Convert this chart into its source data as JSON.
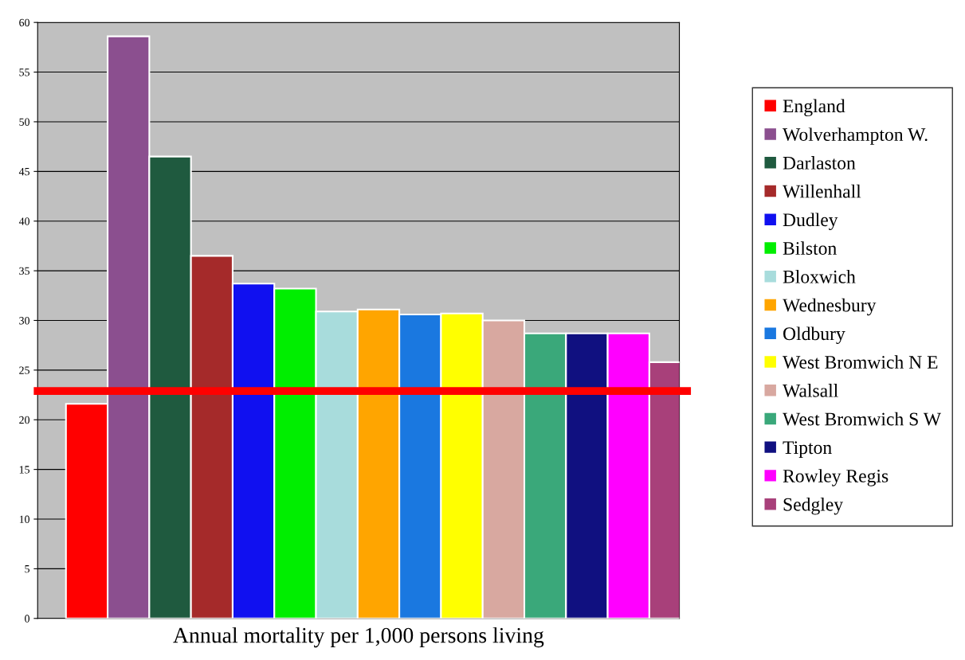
{
  "chart_data": {
    "type": "bar",
    "xlabel": "Annual mortality per 1,000 persons living",
    "categories": [
      null,
      null,
      null,
      null,
      null,
      null,
      null,
      null,
      null,
      null,
      null,
      null,
      null,
      null,
      null
    ],
    "series": [
      {
        "name": "England",
        "color": "#ff0000",
        "values": [
          21.6,
          null,
          null,
          null,
          null,
          null,
          null,
          null,
          null,
          null,
          null,
          null,
          null,
          null,
          null
        ]
      },
      {
        "name": "Wolverhampton W.",
        "color": "#8b4f8f",
        "values": [
          null,
          58.6,
          null,
          null,
          null,
          null,
          null,
          null,
          null,
          null,
          null,
          null,
          null,
          null,
          null
        ]
      },
      {
        "name": "Darlaston",
        "color": "#1f5a3f",
        "values": [
          null,
          null,
          46.5,
          null,
          null,
          null,
          null,
          null,
          null,
          null,
          null,
          null,
          null,
          null,
          null
        ]
      },
      {
        "name": "Willenhall",
        "color": "#a52a2a",
        "values": [
          null,
          null,
          null,
          36.5,
          null,
          null,
          null,
          null,
          null,
          null,
          null,
          null,
          null,
          null,
          null
        ]
      },
      {
        "name": "Dudley",
        "color": "#1010f0",
        "values": [
          null,
          null,
          null,
          null,
          33.7,
          null,
          null,
          null,
          null,
          null,
          null,
          null,
          null,
          null,
          null
        ]
      },
      {
        "name": "Bilston",
        "color": "#00ee00",
        "values": [
          null,
          null,
          null,
          null,
          null,
          33.2,
          null,
          null,
          null,
          null,
          null,
          null,
          null,
          null,
          null
        ]
      },
      {
        "name": "Bloxwich",
        "color": "#a8dcdc",
        "values": [
          null,
          null,
          null,
          null,
          null,
          null,
          30.9,
          null,
          null,
          null,
          null,
          null,
          null,
          null,
          null
        ]
      },
      {
        "name": "Wednesbury",
        "color": "#ffa500",
        "values": [
          null,
          null,
          null,
          null,
          null,
          null,
          null,
          31.1,
          null,
          null,
          null,
          null,
          null,
          null,
          null
        ]
      },
      {
        "name": "Oldbury",
        "color": "#1a78e0",
        "values": [
          null,
          null,
          null,
          null,
          null,
          null,
          null,
          null,
          30.6,
          null,
          null,
          null,
          null,
          null,
          null
        ]
      },
      {
        "name": "West Bromwich N E",
        "color": "#ffff00",
        "values": [
          null,
          null,
          null,
          null,
          null,
          null,
          null,
          null,
          null,
          30.7,
          null,
          null,
          null,
          null,
          null
        ]
      },
      {
        "name": "Walsall",
        "color": "#d8a8a0",
        "values": [
          null,
          null,
          null,
          null,
          null,
          null,
          null,
          null,
          null,
          null,
          30.0,
          null,
          null,
          null,
          null
        ]
      },
      {
        "name": "West Bromwich S W",
        "color": "#3aa87a",
        "values": [
          null,
          null,
          null,
          null,
          null,
          null,
          null,
          null,
          null,
          null,
          null,
          28.7,
          null,
          null,
          null
        ]
      },
      {
        "name": "Tipton",
        "color": "#101080",
        "values": [
          null,
          null,
          null,
          null,
          null,
          null,
          null,
          null,
          null,
          null,
          null,
          null,
          28.7,
          null,
          null
        ]
      },
      {
        "name": "Rowley Regis",
        "color": "#ff00ff",
        "values": [
          null,
          null,
          null,
          null,
          null,
          null,
          null,
          null,
          null,
          null,
          null,
          null,
          null,
          28.7,
          null
        ]
      },
      {
        "name": "Sedgley",
        "color": "#a8407a",
        "values": [
          null,
          null,
          null,
          null,
          null,
          null,
          null,
          null,
          null,
          null,
          null,
          null,
          null,
          null,
          25.8
        ]
      }
    ],
    "ylim": [
      0,
      60
    ],
    "yticks": [
      0,
      5,
      10,
      15,
      20,
      25,
      30,
      35,
      40,
      45,
      50,
      55,
      60
    ],
    "stacked": true,
    "grid": "y",
    "legend": "right",
    "tick_labels": "y",
    "ref_lines": [
      {
        "axis": "y",
        "value": 22.9,
        "color": "#ff0000"
      }
    ]
  }
}
